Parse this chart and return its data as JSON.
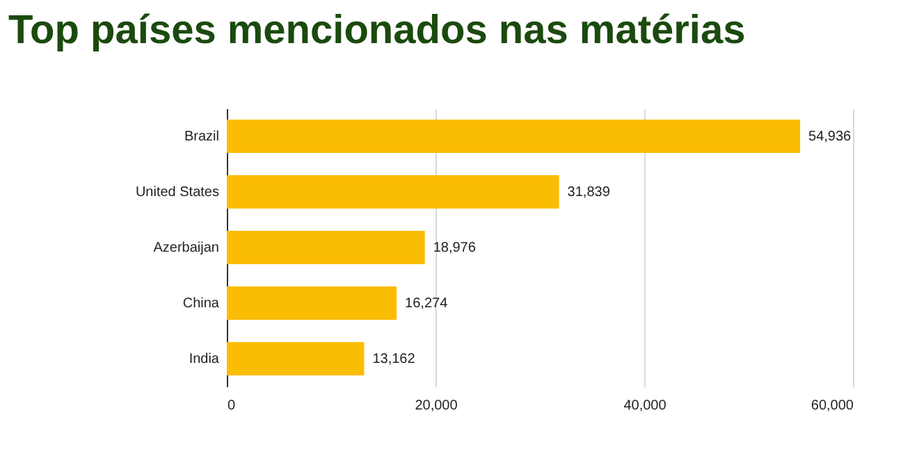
{
  "chart_data": {
    "type": "bar",
    "title": "Top países mencionados nas matérias",
    "orientation": "horizontal",
    "categories": [
      "Brazil",
      "United States",
      "Azerbaijan",
      "China",
      "India"
    ],
    "values": [
      54936,
      31839,
      18976,
      16274,
      13162
    ],
    "color": "#fbbc04",
    "value_labels": [
      "54,936",
      "31,839",
      "18,976",
      "16,274",
      "13,162"
    ],
    "xlim": [
      0,
      60000
    ],
    "xticks": [
      0,
      {
        "value": 20000,
        "label": "20,000"
      },
      {
        "value": 40000,
        "label": "40,000"
      },
      {
        "value": 60000,
        "label": "60,000"
      }
    ],
    "grid": "x"
  }
}
